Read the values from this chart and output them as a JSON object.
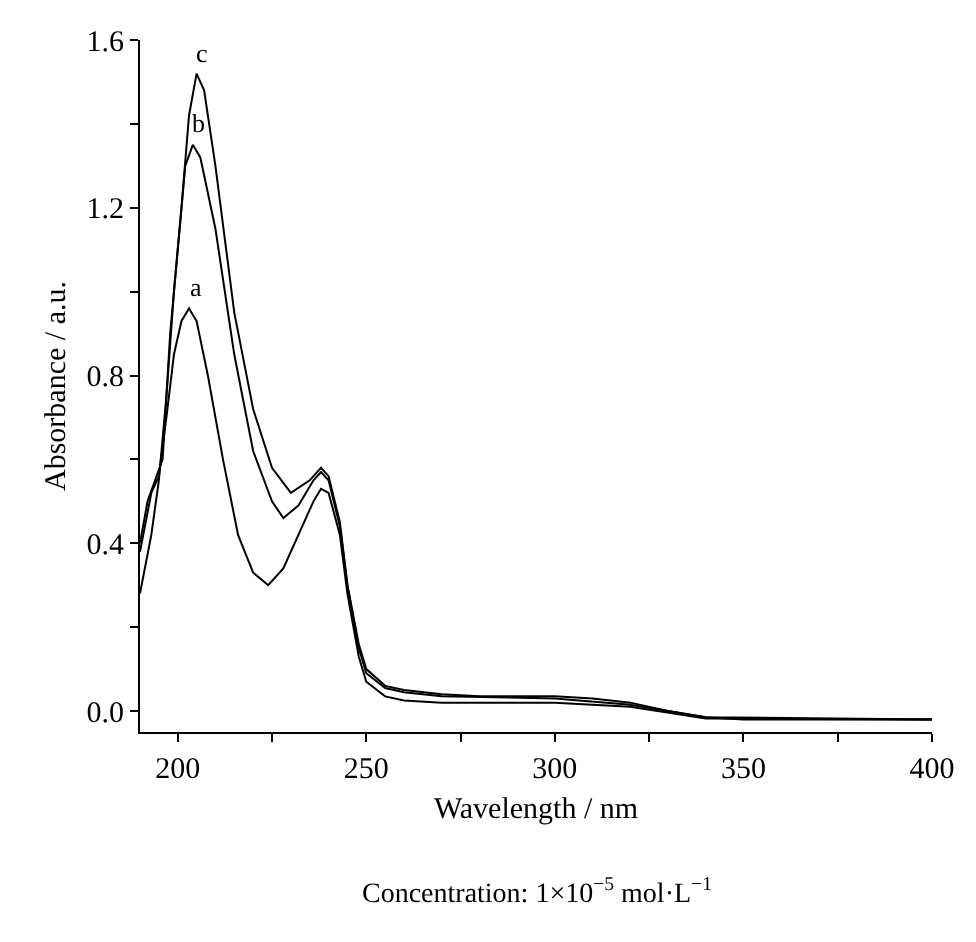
{
  "chart_data": {
    "type": "line",
    "xlabel": "Wavelength / nm",
    "ylabel": "Absorbance / a.u.",
    "xlim": [
      190,
      400
    ],
    "xticks": [
      200,
      {
        "value": 225,
        "label": null
      },
      250,
      {
        "value": 275,
        "label": null
      },
      300,
      {
        "value": 325,
        "label": null
      },
      350,
      {
        "value": 375,
        "label": null
      },
      400
    ],
    "ylim": [
      -0.05,
      1.6
    ],
    "yticks": [
      {
        "value": 0.0,
        "label": "0.0"
      },
      {
        "value": 0.2,
        "label": null
      },
      {
        "value": 0.4,
        "label": "0.4"
      },
      {
        "value": 0.6,
        "label": null
      },
      {
        "value": 0.8,
        "label": "0.8"
      },
      {
        "value": 1.0,
        "label": null
      },
      {
        "value": 1.2,
        "label": "1.2"
      },
      {
        "value": 1.4,
        "label": null
      },
      {
        "value": 1.6,
        "label": "1.6"
      }
    ],
    "legend": false,
    "marker": "none",
    "line_style": "solid",
    "annotations": [
      "Concentration: 1×10$^{−5}$ mol·L$^{−1}$"
    ],
    "series": [
      {
        "name": "a",
        "color": "#000000",
        "x": [
          190,
          193,
          195,
          197,
          199,
          201,
          203,
          205,
          208,
          212,
          216,
          220,
          224,
          228,
          232,
          236,
          238,
          240,
          243,
          245,
          248,
          250,
          255,
          260,
          270,
          300,
          320,
          340,
          400
        ],
        "values": [
          0.38,
          0.52,
          0.56,
          0.7,
          0.85,
          0.93,
          0.96,
          0.93,
          0.8,
          0.6,
          0.42,
          0.33,
          0.3,
          0.34,
          0.42,
          0.5,
          0.53,
          0.52,
          0.42,
          0.28,
          0.13,
          0.07,
          0.035,
          0.025,
          0.02,
          0.02,
          0.01,
          -0.018,
          -0.02
        ]
      },
      {
        "name": "b",
        "color": "#000000",
        "x": [
          190,
          192,
          194,
          196,
          198,
          200,
          202,
          204,
          206,
          210,
          215,
          220,
          225,
          228,
          232,
          236,
          238,
          240,
          243,
          245,
          248,
          250,
          255,
          260,
          270,
          300,
          320,
          340,
          400
        ],
        "values": [
          0.4,
          0.5,
          0.55,
          0.6,
          0.9,
          1.1,
          1.3,
          1.35,
          1.32,
          1.15,
          0.85,
          0.62,
          0.5,
          0.46,
          0.49,
          0.55,
          0.57,
          0.55,
          0.44,
          0.3,
          0.15,
          0.09,
          0.055,
          0.045,
          0.035,
          0.03,
          0.015,
          -0.015,
          -0.02
        ]
      },
      {
        "name": "c",
        "color": "#000000",
        "x": [
          190,
          193,
          195,
          197,
          199,
          201,
          203,
          205,
          207,
          210,
          215,
          220,
          225,
          230,
          235,
          238,
          240,
          243,
          245,
          248,
          250,
          255,
          260,
          270,
          280,
          300,
          310,
          320,
          330,
          340,
          350,
          400
        ],
        "values": [
          0.28,
          0.42,
          0.55,
          0.75,
          1.0,
          1.2,
          1.42,
          1.52,
          1.48,
          1.3,
          0.95,
          0.72,
          0.58,
          0.52,
          0.55,
          0.58,
          0.56,
          0.45,
          0.3,
          0.16,
          0.1,
          0.06,
          0.05,
          0.04,
          0.035,
          0.035,
          0.03,
          0.02,
          0.0,
          -0.015,
          -0.02,
          -0.02
        ]
      }
    ]
  }
}
